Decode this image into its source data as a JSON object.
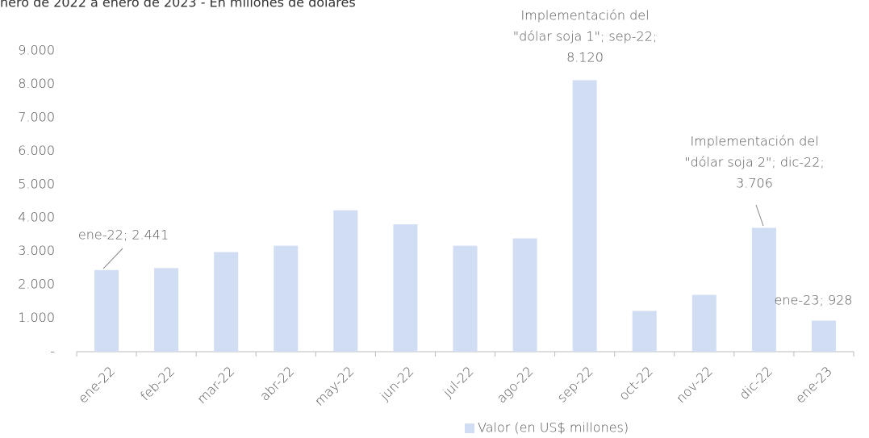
{
  "chart_data": {
    "type": "bar",
    "title": "nero de 2022 a enero de 2023 - En millones de dólares",
    "categories": [
      "ene-22",
      "feb-22",
      "mar-22",
      "abr-22",
      "may-22",
      "jun-22",
      "jul-22",
      "ago-22",
      "sep-22",
      "oct-22",
      "nov-22",
      "dic-22",
      "ene-23"
    ],
    "series": [
      {
        "name": "Valor (en US$ millones)",
        "color": "#d0ddf2",
        "values": [
          2441,
          2500,
          2980,
          3170,
          4230,
          3810,
          3170,
          3390,
          8120,
          1220,
          1700,
          3706,
          928
        ]
      }
    ],
    "ylim": [
      0,
      9000
    ],
    "yticks": [
      {
        "value": 0,
        "label": "-"
      },
      {
        "value": 1000,
        "label": "1.000"
      },
      {
        "value": 2000,
        "label": "2.000"
      },
      {
        "value": 3000,
        "label": "3.000"
      },
      {
        "value": 4000,
        "label": "4.000"
      },
      {
        "value": 5000,
        "label": "5.000"
      },
      {
        "value": 6000,
        "label": "6.000"
      },
      {
        "value": 7000,
        "label": "7.000"
      },
      {
        "value": 8000,
        "label": "8.000"
      },
      {
        "value": 9000,
        "label": "9.000"
      }
    ],
    "annotations": [
      {
        "lines": [
          "ene-22;  2.441"
        ]
      },
      {
        "lines": [
          "Implementación del",
          "\"dólar soja 1\"; sep-22;",
          "8.120"
        ]
      },
      {
        "lines": [
          "Implementación del",
          "\"dólar soja 2\"; dic-22;",
          "3.706"
        ]
      },
      {
        "lines": [
          "ene-23; 928"
        ]
      }
    ],
    "legend": "bottom"
  }
}
